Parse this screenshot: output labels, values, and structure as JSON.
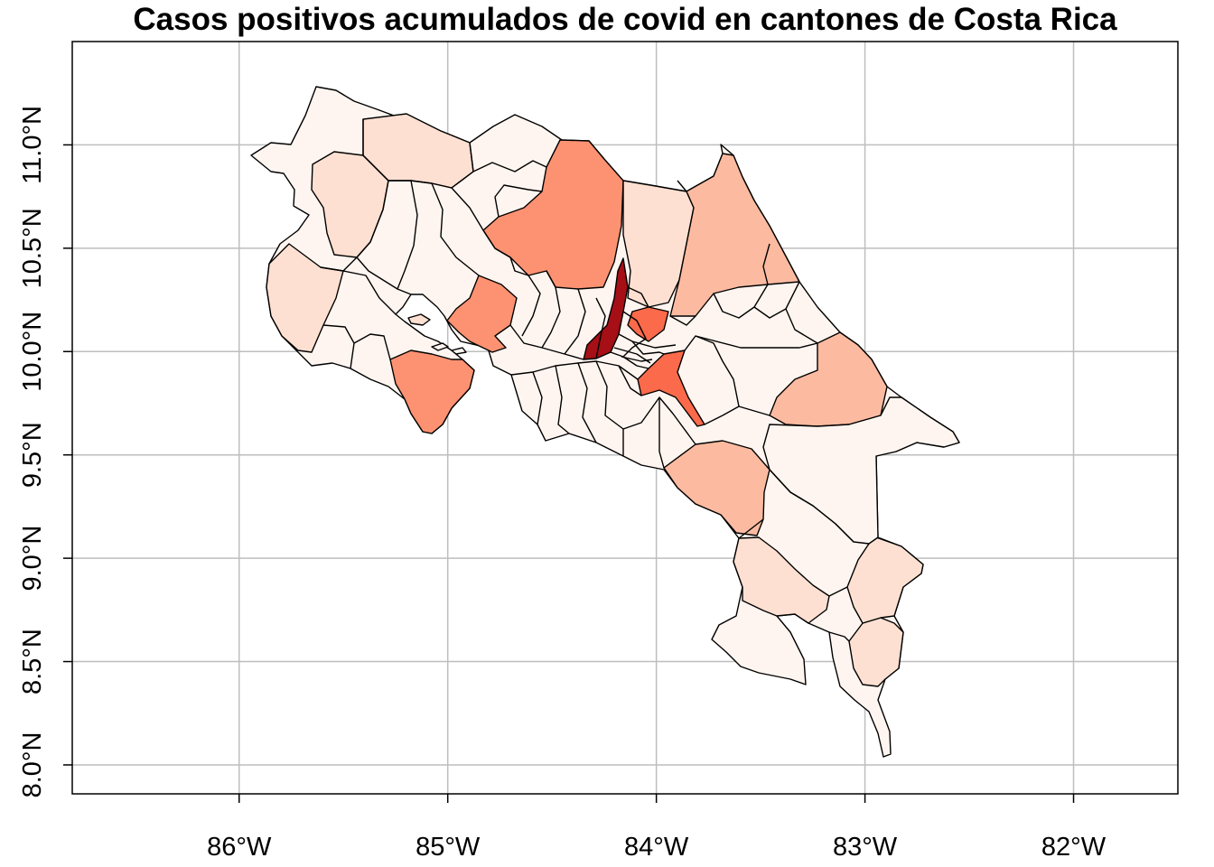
{
  "title": "Casos positivos acumulados de covid en cantones de Costa Rica",
  "map": {
    "type": "choropleth",
    "region": "Costa Rica",
    "unit": "cantones",
    "colors": {
      "palette": [
        "#fff5f0",
        "#fee0d2",
        "#fcbba1",
        "#fc9272",
        "#fb6a4a",
        "#ef3b2c",
        "#cb181d",
        "#a50f15"
      ],
      "border": "#000000",
      "grid": "#bebebe",
      "frame": "#000000"
    },
    "grid": true,
    "lon_range": [
      -86.8,
      -81.5
    ],
    "lat_range": [
      7.86,
      11.5
    ],
    "lon_ticks": [
      {
        "value": -86,
        "label": "86°W"
      },
      {
        "value": -85,
        "label": "85°W"
      },
      {
        "value": -84,
        "label": "84°W"
      },
      {
        "value": -83,
        "label": "83°W"
      },
      {
        "value": -82,
        "label": "82°W"
      }
    ],
    "lat_ticks": [
      {
        "value": 8.0,
        "label": "8.0°N"
      },
      {
        "value": 8.5,
        "label": "8.5°N"
      },
      {
        "value": 9.0,
        "label": "9.0°N"
      },
      {
        "value": 9.5,
        "label": "9.5°N"
      },
      {
        "value": 10.0,
        "label": "10.0°N"
      },
      {
        "value": 10.5,
        "label": "10.5°N"
      },
      {
        "value": 11.0,
        "label": "11.0°N"
      }
    ]
  }
}
